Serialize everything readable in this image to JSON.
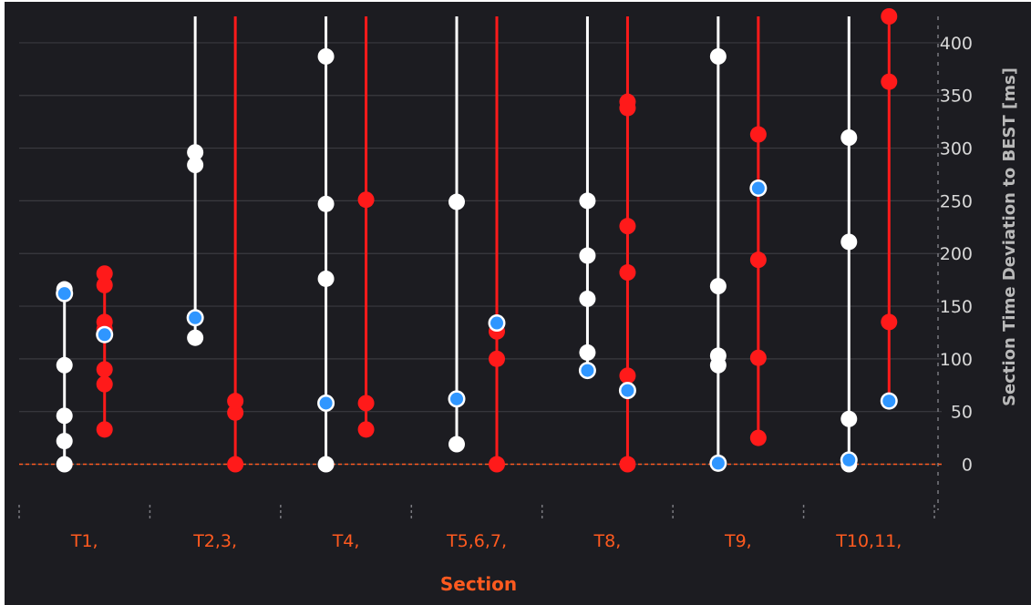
{
  "chart_data": {
    "type": "scatter",
    "xlabel": "Section",
    "ylabel": "Section Time Deviation to BEST [ms]",
    "ylim": [
      -35,
      425
    ],
    "yticks": [
      0,
      50,
      100,
      150,
      200,
      250,
      300,
      350,
      400
    ],
    "grid": true,
    "reference_line": 0,
    "categories": [
      "T1,",
      "T2,3,",
      "T4,",
      "T5,6,7,",
      "T8,",
      "T9,",
      "T10,11,"
    ],
    "series": [
      {
        "color": "#ffffff",
        "offset": "left",
        "values": [
          {
            "points": [
              0,
              22,
              46,
              94,
              166
            ],
            "range": [
              0,
              166
            ]
          },
          {
            "points": [
              120,
              284,
              296
            ],
            "range": [
              120,
              425
            ]
          },
          {
            "points": [
              0,
              176,
              247,
              387
            ],
            "range": [
              0,
              425
            ]
          },
          {
            "points": [
              19,
              249
            ],
            "range": [
              19,
              425
            ]
          },
          {
            "points": [
              89,
              106,
              157,
              198,
              250
            ],
            "range": [
              89,
              425
            ]
          },
          {
            "points": [
              94,
              103,
              169,
              387
            ],
            "range": [
              0,
              425
            ]
          },
          {
            "points": [
              0,
              43,
              211,
              310
            ],
            "range": [
              0,
              425
            ]
          }
        ]
      },
      {
        "color": "#ff1a1a",
        "offset": "right",
        "values": [
          {
            "points": [
              33,
              76,
              90,
              128,
              135,
              170,
              181
            ],
            "range": [
              33,
              181
            ]
          },
          {
            "points": [
              0,
              49,
              60
            ],
            "range": [
              0,
              425
            ]
          },
          {
            "points": [
              33,
              58,
              251
            ],
            "range": [
              33,
              425
            ]
          },
          {
            "points": [
              0,
              100,
              126
            ],
            "range": [
              0,
              425
            ]
          },
          {
            "points": [
              0,
              84,
              182,
              226,
              338,
              344
            ],
            "range": [
              0,
              425
            ]
          },
          {
            "points": [
              25,
              101,
              194,
              313
            ],
            "range": [
              25,
              425
            ]
          },
          {
            "points": [
              135,
              363,
              425
            ],
            "range": [
              60,
              425
            ]
          }
        ]
      }
    ],
    "highlight": {
      "color": "#2f96ff",
      "points": [
        {
          "category": 0,
          "series": 0,
          "y": 162
        },
        {
          "category": 0,
          "series": 1,
          "y": 123
        },
        {
          "category": 1,
          "series": 0,
          "y": 139
        },
        {
          "category": 2,
          "series": 0,
          "y": 58
        },
        {
          "category": 3,
          "series": 0,
          "y": 62
        },
        {
          "category": 3,
          "series": 1,
          "y": 134
        },
        {
          "category": 4,
          "series": 0,
          "y": 89
        },
        {
          "category": 4,
          "series": 1,
          "y": 70
        },
        {
          "category": 5,
          "series": 0,
          "y": 1
        },
        {
          "category": 5,
          "series": 1,
          "y": 262
        },
        {
          "category": 6,
          "series": 0,
          "y": 4
        },
        {
          "category": 6,
          "series": 1,
          "y": 60
        }
      ]
    },
    "colors": {
      "background": "#1c1c21",
      "grid": "#3a3a40",
      "reference": "#ff5a1f"
    }
  }
}
